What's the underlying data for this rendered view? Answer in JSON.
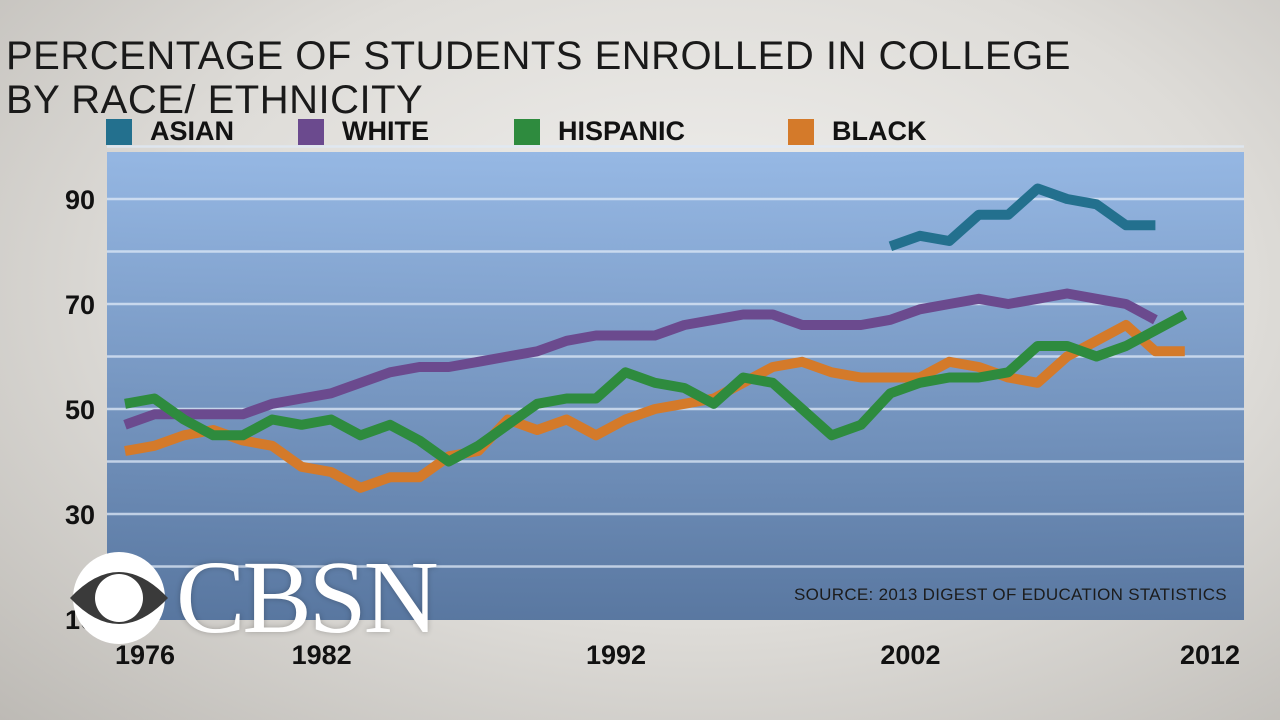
{
  "header": {
    "title_line1": "PERCENTAGE OF STUDENTS ENROLLED IN COLLEGE",
    "title_line2": "BY RACE/ ETHNICITY"
  },
  "source_note": "SOURCE: 2013 DIGEST OF EDUCATION STATISTICS",
  "logo": {
    "text": "CBSN",
    "icon": "cbs-eye-icon"
  },
  "colors": {
    "asian": "#23708e",
    "white": "#6b4a8e",
    "hispanic": "#2e8b3e",
    "black": "#d47a2a",
    "plot_top": "#8fb4e4",
    "plot_bottom": "#4e6f9c"
  },
  "chart_data": {
    "type": "line",
    "title": "PERCENTAGE OF STUDENTS ENROLLED IN COLLEGE BY RACE/ ETHNICITY",
    "xlabel": "",
    "ylabel": "",
    "xlim": [
      1976,
      2012
    ],
    "ylim": [
      10,
      100
    ],
    "y_ticks": [
      10,
      30,
      50,
      70,
      90
    ],
    "x_ticks": [
      1976,
      1982,
      1992,
      2002,
      2012
    ],
    "grid": true,
    "legend_position": "top",
    "x": [
      1976,
      1977,
      1978,
      1979,
      1980,
      1981,
      1982,
      1983,
      1984,
      1985,
      1986,
      1987,
      1988,
      1989,
      1990,
      1991,
      1992,
      1993,
      1994,
      1995,
      1996,
      1997,
      1998,
      1999,
      2000,
      2001,
      2002,
      2003,
      2004,
      2005,
      2006,
      2007,
      2008,
      2009,
      2010,
      2011,
      2012
    ],
    "series": [
      {
        "name": "ASIAN",
        "color": "#23708e",
        "values": [
          null,
          null,
          null,
          null,
          null,
          null,
          null,
          null,
          null,
          null,
          null,
          null,
          null,
          null,
          null,
          null,
          null,
          null,
          null,
          null,
          null,
          null,
          null,
          null,
          null,
          null,
          81,
          83,
          82,
          87,
          87,
          92,
          90,
          89,
          85,
          85,
          null
        ]
      },
      {
        "name": "WHITE",
        "color": "#6b4a8e",
        "values": [
          47,
          49,
          49,
          49,
          49,
          51,
          52,
          53,
          55,
          57,
          58,
          58,
          59,
          60,
          61,
          63,
          64,
          64,
          64,
          66,
          67,
          68,
          68,
          66,
          66,
          66,
          67,
          69,
          70,
          71,
          70,
          71,
          72,
          71,
          70,
          67,
          null
        ]
      },
      {
        "name": "HISPANIC",
        "color": "#2e8b3e",
        "values": [
          51,
          52,
          48,
          45,
          45,
          48,
          47,
          48,
          45,
          47,
          44,
          40,
          43,
          47,
          51,
          52,
          52,
          57,
          55,
          54,
          51,
          56,
          55,
          50,
          45,
          47,
          53,
          55,
          56,
          56,
          57,
          62,
          62,
          60,
          62,
          65,
          68
        ]
      },
      {
        "name": "BLACK",
        "color": "#d47a2a",
        "values": [
          42,
          43,
          45,
          46,
          44,
          43,
          39,
          38,
          35,
          37,
          37,
          41,
          42,
          48,
          46,
          48,
          45,
          48,
          50,
          51,
          52,
          55,
          58,
          59,
          57,
          56,
          56,
          56,
          59,
          58,
          56,
          55,
          60,
          63,
          66,
          61,
          61
        ]
      }
    ]
  }
}
